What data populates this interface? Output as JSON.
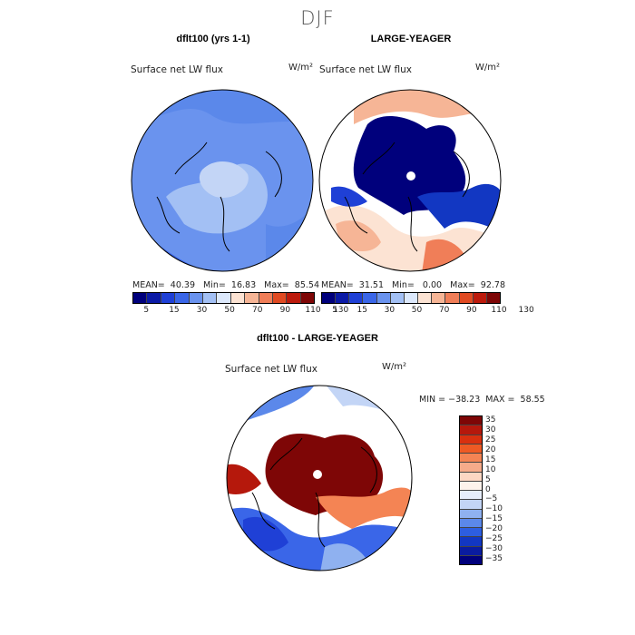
{
  "header": {
    "season": "DJF"
  },
  "colors": {
    "abs_palette": [
      "#00007c",
      "#0b1aa6",
      "#1f40d6",
      "#3a66e8",
      "#6a93ee",
      "#a3c0f4",
      "#dce8fb",
      "#fce3d3",
      "#f6b596",
      "#f07e58",
      "#e04a22",
      "#bc1a0c",
      "#7e0606"
    ],
    "diff_palette": [
      "#7e0606",
      "#b5180c",
      "#d8300f",
      "#ee5a24",
      "#f48454",
      "#f6ab8a",
      "#fcd7c3",
      "#fdf3ec",
      "#e7eefb",
      "#c3d5f6",
      "#8fb1f0",
      "#5b88ea",
      "#2d5ee0",
      "#1237c2",
      "#0a1ca0",
      "#00007c"
    ]
  },
  "panels": {
    "left": {
      "title": "dflt100 (yrs 1-1)",
      "variable": "Surface net LW flux",
      "unit": "W/m²",
      "stats": "MEAN=  40.39   Min=  16.83   Max=  85.54"
    },
    "right": {
      "title": "LARGE-YEAGER",
      "variable": "Surface net LW flux",
      "unit": "W/m²",
      "stats": "MEAN=  31.51   Min=   0.00   Max=  92.78"
    },
    "diff": {
      "title": "dflt100 - LARGE-YEAGER",
      "variable": "Surface net LW flux",
      "unit": "W/m²",
      "stats": "MIN = −38.23  MAX =  58.55"
    }
  },
  "chart_data": [
    {
      "type": "heatmap",
      "title": "dflt100 (yrs 1-1)",
      "subtitle": "Surface net LW flux",
      "units": "W/m²",
      "mean": 40.39,
      "min": 16.83,
      "max": 85.54,
      "colorbar_levels": [
        5,
        15,
        30,
        50,
        70,
        90,
        110,
        130
      ]
    },
    {
      "type": "heatmap",
      "title": "LARGE-YEAGER",
      "subtitle": "Surface net LW flux",
      "units": "W/m²",
      "mean": 31.51,
      "min": 0.0,
      "max": 92.78,
      "colorbar_levels": [
        5,
        15,
        30,
        50,
        70,
        90,
        110,
        130
      ]
    },
    {
      "type": "heatmap",
      "title": "dflt100 - LARGE-YEAGER",
      "subtitle": "Surface net LW flux",
      "units": "W/m²",
      "min": -38.23,
      "max": 58.55,
      "colorbar_levels": [
        35,
        30,
        25,
        20,
        15,
        10,
        5,
        0,
        -5,
        -10,
        -15,
        -20,
        -25,
        -30,
        -35
      ]
    }
  ]
}
